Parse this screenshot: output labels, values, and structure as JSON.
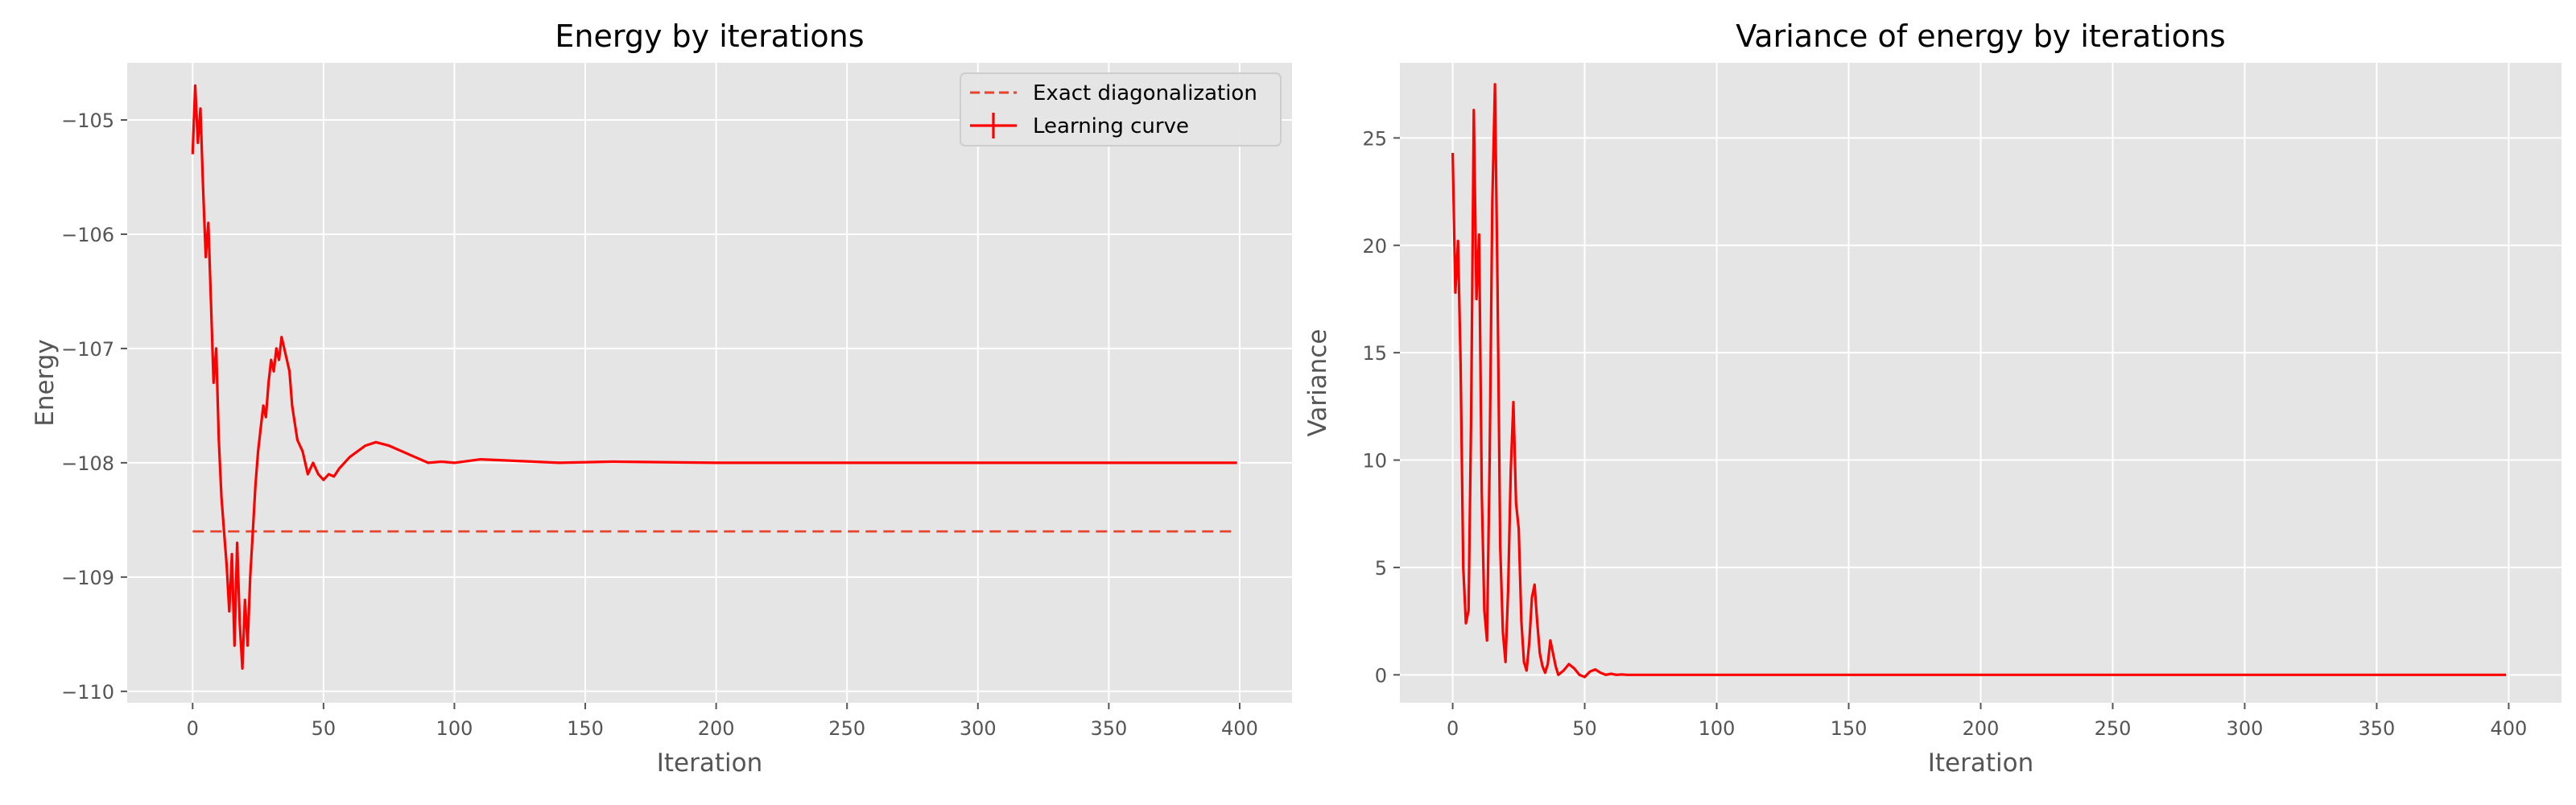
{
  "chart_data": [
    {
      "type": "line",
      "title": "Energy by iterations",
      "xlabel": "Iteration",
      "ylabel": "Energy",
      "xlim": [
        -25,
        420
      ],
      "ylim": [
        -110.1,
        -104.5
      ],
      "xticks": [
        0,
        50,
        100,
        150,
        200,
        250,
        300,
        350,
        400
      ],
      "yticks": [
        -110,
        -109,
        -108,
        -107,
        -106,
        -105
      ],
      "xtick_labels": [
        "0",
        "50",
        "100",
        "150",
        "200",
        "250",
        "300",
        "350",
        "400"
      ],
      "ytick_labels": [
        "−110",
        "−109",
        "−108",
        "−107",
        "−106",
        "−105"
      ],
      "grid": true,
      "legend": {
        "placement": "top-right",
        "entries": [
          {
            "label": "Exact diagonalization",
            "style": "dashed",
            "color": "#e8432c"
          },
          {
            "label": "Learning curve",
            "style": "solid-errorbar",
            "color": "#ff0000"
          }
        ]
      },
      "series": [
        {
          "name": "Exact diagonalization",
          "color": "#e8432c",
          "style": "dashed",
          "x": [
            0,
            397
          ],
          "y": [
            -108.6,
            -108.6
          ]
        },
        {
          "name": "Learning curve",
          "color": "#ff0000",
          "style": "solid",
          "x": [
            0,
            1,
            2,
            3,
            4,
            5,
            6,
            7,
            8,
            9,
            10,
            11,
            12,
            13,
            14,
            15,
            16,
            17,
            18,
            19,
            20,
            21,
            22,
            23,
            24,
            25,
            26,
            27,
            28,
            29,
            30,
            31,
            32,
            33,
            34,
            35,
            36,
            37,
            38,
            40,
            42,
            44,
            46,
            48,
            50,
            52,
            54,
            56,
            58,
            60,
            63,
            66,
            70,
            75,
            80,
            85,
            90,
            95,
            100,
            110,
            120,
            140,
            160,
            200,
            250,
            300,
            350,
            399
          ],
          "y": [
            -105.3,
            -104.7,
            -105.2,
            -104.9,
            -105.6,
            -106.2,
            -105.9,
            -106.6,
            -107.3,
            -107.0,
            -107.8,
            -108.3,
            -108.6,
            -108.9,
            -109.3,
            -108.8,
            -109.6,
            -108.7,
            -109.4,
            -109.8,
            -109.2,
            -109.6,
            -109.0,
            -108.6,
            -108.2,
            -107.9,
            -107.7,
            -107.5,
            -107.6,
            -107.3,
            -107.1,
            -107.2,
            -107.0,
            -107.1,
            -106.9,
            -107.0,
            -107.1,
            -107.2,
            -107.5,
            -107.8,
            -107.9,
            -108.1,
            -108.0,
            -108.1,
            -108.15,
            -108.1,
            -108.12,
            -108.05,
            -108.0,
            -107.95,
            -107.9,
            -107.85,
            -107.82,
            -107.85,
            -107.9,
            -107.95,
            -108.0,
            -107.99,
            -108.0,
            -107.97,
            -107.98,
            -108.0,
            -107.99,
            -108.0,
            -108.0,
            -108.0,
            -108.0,
            -108.0
          ]
        }
      ]
    },
    {
      "type": "line",
      "title": "Variance of energy by iterations",
      "xlabel": "Iteration",
      "ylabel": "Variance",
      "xlim": [
        -20,
        420
      ],
      "ylim": [
        -1.3,
        28.5
      ],
      "xticks": [
        0,
        50,
        100,
        150,
        200,
        250,
        300,
        350,
        400
      ],
      "yticks": [
        0,
        5,
        10,
        15,
        20,
        25
      ],
      "xtick_labels": [
        "0",
        "50",
        "100",
        "150",
        "200",
        "250",
        "300",
        "350",
        "400"
      ],
      "ytick_labels": [
        "0",
        "5",
        "10",
        "15",
        "20",
        "25"
      ],
      "grid": true,
      "series": [
        {
          "color": "#ff0000",
          "style": "solid",
          "x": [
            0,
            1,
            2,
            3,
            4,
            5,
            6,
            7,
            8,
            9,
            10,
            11,
            12,
            13,
            14,
            15,
            16,
            17,
            18,
            19,
            20,
            21,
            22,
            23,
            24,
            25,
            26,
            27,
            28,
            29,
            30,
            31,
            32,
            33,
            34,
            35,
            36,
            37,
            38,
            39,
            40,
            42,
            44,
            46,
            48,
            50,
            52,
            54,
            56,
            58,
            60,
            62,
            64,
            66,
            70,
            75,
            80,
            90,
            100,
            150,
            200,
            300,
            399
          ],
          "y": [
            24.3,
            17.8,
            20.2,
            14.5,
            5.0,
            2.4,
            3.0,
            12.0,
            26.3,
            17.5,
            20.5,
            8.5,
            3.0,
            1.6,
            10.0,
            22.0,
            27.5,
            18.0,
            6.0,
            2.0,
            0.6,
            4.0,
            9.5,
            12.7,
            8.0,
            6.8,
            2.5,
            0.6,
            0.2,
            1.5,
            3.6,
            4.2,
            2.5,
            1.0,
            0.4,
            0.1,
            0.5,
            1.6,
            1.0,
            0.4,
            0.0,
            0.2,
            0.5,
            0.3,
            0.0,
            -0.1,
            0.15,
            0.25,
            0.1,
            0.0,
            0.05,
            0.0,
            0.02,
            0.0,
            0.0,
            0.0,
            0.0,
            0.0,
            0.0,
            0.0,
            0.0,
            0.0,
            0.0
          ]
        }
      ]
    }
  ]
}
